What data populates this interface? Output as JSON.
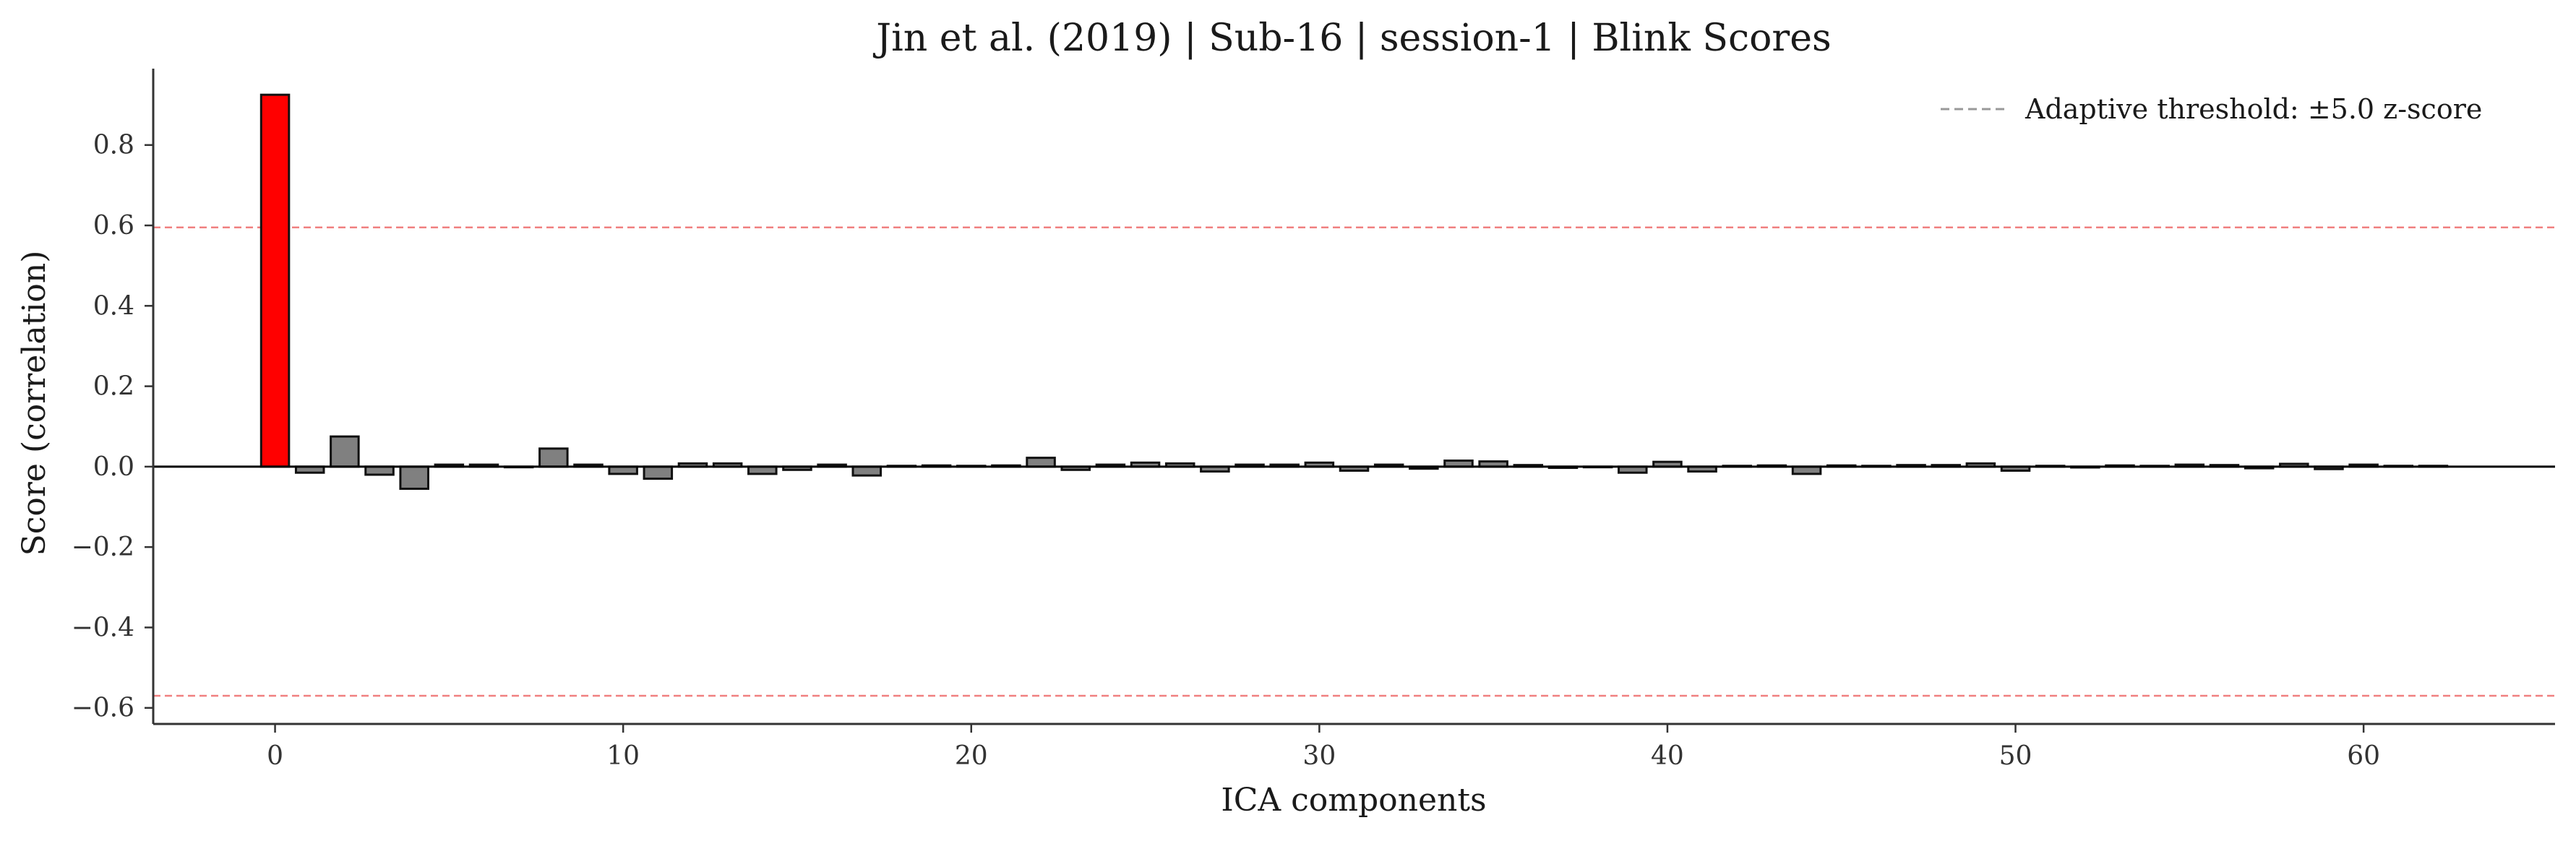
{
  "chart_data": {
    "type": "bar",
    "title": "Jin et al. (2019) | Sub-16 | session-1 | Blink Scores",
    "xlabel": "ICA components",
    "ylabel": "Score (correlation)",
    "xlim": [
      -3.5,
      65.5
    ],
    "ylim": [
      -0.64,
      0.99
    ],
    "xticks": [
      0,
      10,
      20,
      30,
      40,
      50,
      60
    ],
    "yticks": [
      -0.6,
      -0.4,
      -0.2,
      0.0,
      0.2,
      0.4,
      0.6,
      0.8
    ],
    "xtick_labels": [
      "0",
      "10",
      "20",
      "30",
      "40",
      "50",
      "60"
    ],
    "ytick_labels": [
      "−0.6",
      "−0.4",
      "−0.2",
      "0.0",
      "0.2",
      "0.4",
      "0.6",
      "0.8"
    ],
    "thresholds": {
      "upper": 0.595,
      "lower": -0.57
    },
    "categories": [
      0,
      1,
      2,
      3,
      4,
      5,
      6,
      7,
      8,
      9,
      10,
      11,
      12,
      13,
      14,
      15,
      16,
      17,
      18,
      19,
      20,
      21,
      22,
      23,
      24,
      25,
      26,
      27,
      28,
      29,
      30,
      31,
      32,
      33,
      34,
      35,
      36,
      37,
      38,
      39,
      40,
      41,
      42,
      43,
      44,
      45,
      46,
      47,
      48,
      49,
      50,
      51,
      52,
      53,
      54,
      55,
      56,
      57,
      58,
      59,
      60,
      61,
      62
    ],
    "values": [
      0.925,
      -0.015,
      0.075,
      -0.02,
      -0.055,
      0.005,
      0.005,
      0.0,
      0.045,
      0.005,
      -0.018,
      -0.03,
      0.008,
      0.008,
      -0.018,
      -0.008,
      0.005,
      -0.022,
      0.002,
      0.003,
      0.002,
      0.003,
      0.022,
      -0.008,
      0.005,
      0.01,
      0.008,
      -0.012,
      0.005,
      0.005,
      0.01,
      -0.01,
      0.005,
      -0.005,
      0.015,
      0.013,
      0.004,
      -0.003,
      0.0,
      -0.015,
      0.012,
      -0.012,
      0.002,
      0.003,
      -0.018,
      0.003,
      0.002,
      0.004,
      0.004,
      0.008,
      -0.01,
      0.002,
      -0.002,
      0.003,
      0.002,
      0.005,
      0.004,
      -0.004,
      0.007,
      -0.006,
      0.005,
      0.002,
      0.002
    ],
    "flagged": [
      0
    ],
    "colors": {
      "flagged": "#ff0000",
      "normal": "#808080",
      "edge": "#111111",
      "threshold": "#f08080",
      "legend_line": "#999999",
      "axis": "#333333"
    },
    "grid": false,
    "legend": {
      "position": "top-right",
      "entries": [
        {
          "label": "Adaptive threshold: ±5.0 z-score",
          "style": "dashed"
        }
      ]
    }
  }
}
